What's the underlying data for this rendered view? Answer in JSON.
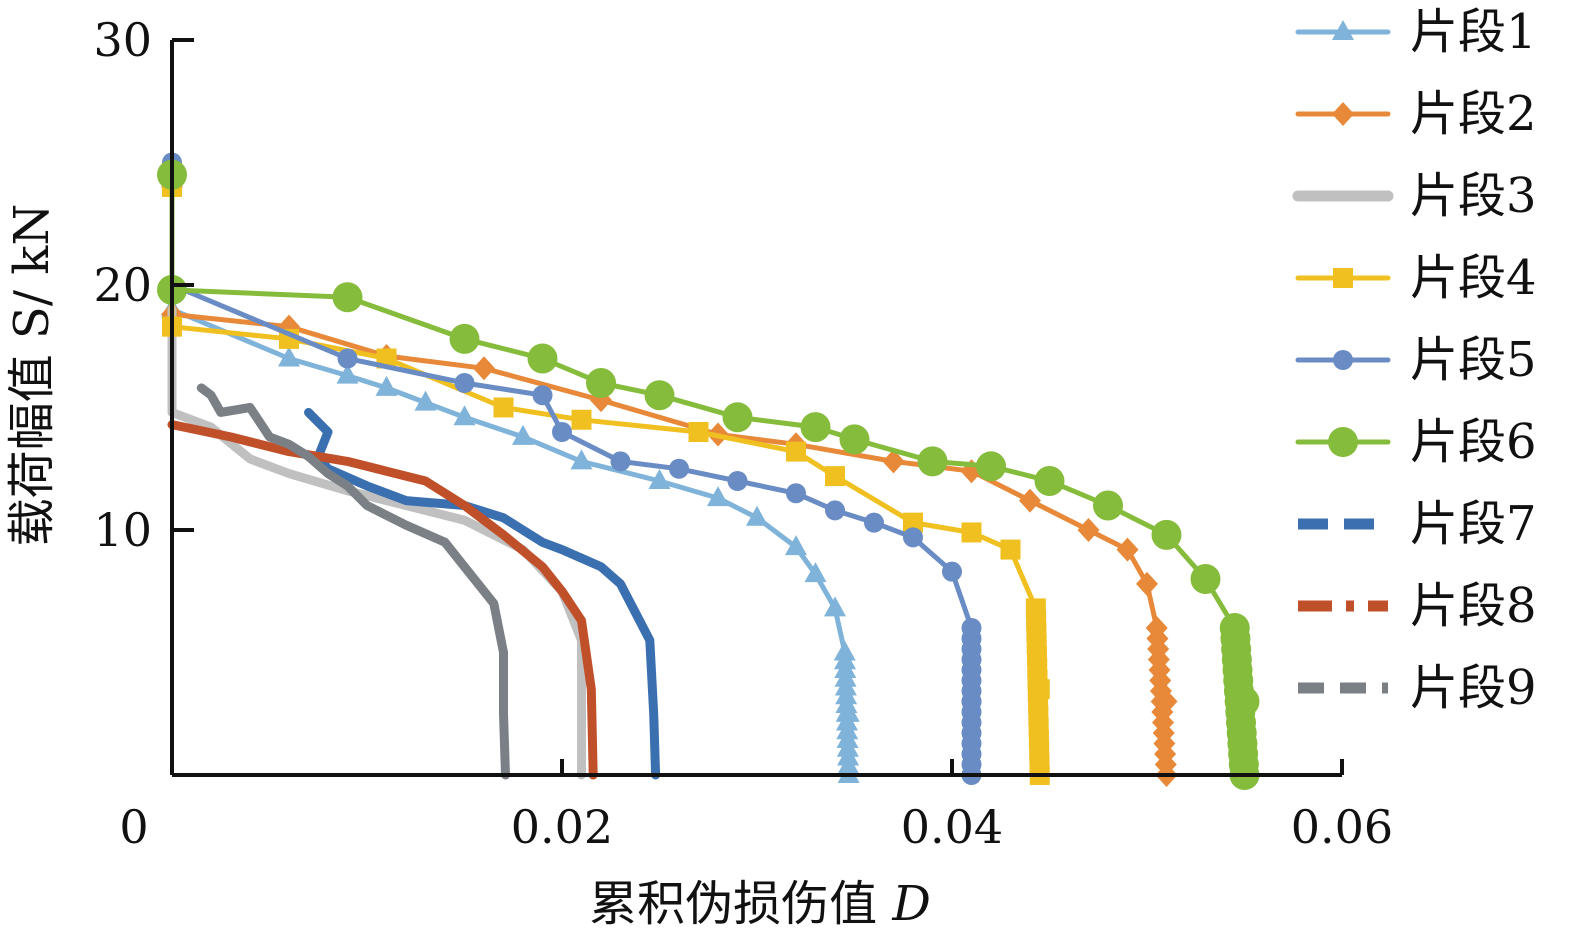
{
  "chart_data": {
    "type": "line",
    "title": "",
    "xlabel_prefix": "累积伪损伤值",
    "xlabel_var": "D",
    "ylabel": "载荷幅值 S/ kN",
    "xlim": [
      0,
      0.06
    ],
    "ylim": [
      0,
      30
    ],
    "x_ticks": [
      0,
      0.02,
      0.04,
      0.06
    ],
    "x_tick_labels": [
      "0",
      "0.02",
      "0.04",
      "0.06"
    ],
    "y_ticks": [
      10,
      20,
      30
    ],
    "y_tick_labels": [
      "10",
      "20",
      "30"
    ],
    "grid": false,
    "legend_position": "right",
    "series": [
      {
        "name": "片段1",
        "color": "#7fb3d9",
        "marker": "triangle",
        "dash": "solid",
        "x": [
          0.0,
          0.0,
          0.006,
          0.009,
          0.011,
          0.013,
          0.015,
          0.018,
          0.021,
          0.025,
          0.028,
          0.03,
          0.032,
          0.033,
          0.034,
          0.0345,
          0.0347,
          0.0347
        ],
        "y": [
          24.5,
          19.0,
          17.0,
          16.3,
          15.8,
          15.2,
          14.6,
          13.8,
          12.8,
          12.0,
          11.3,
          10.5,
          9.3,
          8.2,
          6.8,
          5.0,
          2.5,
          0.0
        ]
      },
      {
        "name": "片段2",
        "color": "#e8893a",
        "marker": "diamond",
        "dash": "solid",
        "x": [
          0.0,
          0.0,
          0.006,
          0.011,
          0.016,
          0.022,
          0.028,
          0.032,
          0.037,
          0.041,
          0.044,
          0.047,
          0.049,
          0.05,
          0.0505,
          0.051,
          0.051
        ],
        "y": [
          24.0,
          18.8,
          18.3,
          17.1,
          16.6,
          15.3,
          13.9,
          13.5,
          12.8,
          12.4,
          11.2,
          10.0,
          9.2,
          7.8,
          6.0,
          3.0,
          0.0
        ]
      },
      {
        "name": "片段3",
        "color": "#c0c0c0",
        "marker": "none",
        "dash": "solid",
        "x": [
          0.0,
          0.0,
          0.002,
          0.004,
          0.006,
          0.009,
          0.012,
          0.015,
          0.018,
          0.02,
          0.021,
          0.021,
          0.021
        ],
        "y": [
          19.0,
          14.8,
          14.2,
          12.9,
          12.3,
          11.6,
          11.0,
          10.4,
          9.2,
          7.5,
          5.5,
          3.0,
          0.0
        ]
      },
      {
        "name": "片段4",
        "color": "#f0c020",
        "marker": "square",
        "dash": "solid",
        "x": [
          0.0,
          0.0,
          0.006,
          0.011,
          0.017,
          0.021,
          0.027,
          0.032,
          0.034,
          0.038,
          0.041,
          0.043,
          0.0443,
          0.0445,
          0.0445
        ],
        "y": [
          24.0,
          18.3,
          17.8,
          17.0,
          15.0,
          14.5,
          14.0,
          13.2,
          12.2,
          10.3,
          9.9,
          9.2,
          6.8,
          3.5,
          0.0
        ]
      },
      {
        "name": "片段5",
        "color": "#6a8cc4",
        "marker": "circle",
        "dash": "solid",
        "x": [
          0.0,
          0.0,
          0.009,
          0.015,
          0.019,
          0.02,
          0.023,
          0.026,
          0.029,
          0.032,
          0.034,
          0.036,
          0.038,
          0.04,
          0.041,
          0.041,
          0.041
        ],
        "y": [
          25.0,
          20.0,
          17.0,
          16.0,
          15.5,
          14.0,
          12.8,
          12.5,
          12.0,
          11.5,
          10.8,
          10.3,
          9.7,
          8.3,
          6.0,
          3.0,
          0.0
        ]
      },
      {
        "name": "片段6",
        "color": "#86bc3c",
        "marker": "circle-large",
        "dash": "solid",
        "x": [
          0.0,
          0.0,
          0.009,
          0.015,
          0.019,
          0.022,
          0.025,
          0.029,
          0.033,
          0.035,
          0.039,
          0.042,
          0.045,
          0.048,
          0.051,
          0.053,
          0.0545,
          0.055,
          0.055
        ],
        "y": [
          24.5,
          19.8,
          19.5,
          17.8,
          17.0,
          16.0,
          15.5,
          14.6,
          14.2,
          13.7,
          12.8,
          12.6,
          12.0,
          11.0,
          9.8,
          8.0,
          6.0,
          3.0,
          0.0
        ]
      },
      {
        "name": "片段7",
        "color": "#3a6fb0",
        "marker": "none",
        "dash": "long",
        "x": [
          0.007,
          0.008,
          0.0075,
          0.008,
          0.01,
          0.012,
          0.015,
          0.017,
          0.019,
          0.02,
          0.022,
          0.023,
          0.0245,
          0.0247,
          0.0248
        ],
        "y": [
          14.8,
          14.0,
          13.0,
          12.5,
          11.8,
          11.2,
          11.0,
          10.5,
          9.5,
          9.2,
          8.5,
          7.8,
          5.5,
          2.5,
          0.0
        ]
      },
      {
        "name": "片段8",
        "color": "#c0502a",
        "marker": "none",
        "dash": "dashdot",
        "x": [
          0.0,
          0.003,
          0.006,
          0.009,
          0.011,
          0.013,
          0.015,
          0.017,
          0.019,
          0.02,
          0.021,
          0.0215,
          0.0216
        ],
        "y": [
          14.3,
          13.8,
          13.2,
          12.8,
          12.4,
          12.0,
          11.0,
          9.8,
          8.5,
          7.5,
          6.3,
          3.5,
          0.0
        ]
      },
      {
        "name": "片段9",
        "color": "#7a8086",
        "marker": "none",
        "dash": "dashed",
        "x": [
          0.0015,
          0.002,
          0.0025,
          0.004,
          0.005,
          0.006,
          0.007,
          0.008,
          0.009,
          0.01,
          0.012,
          0.014,
          0.015,
          0.0165,
          0.017,
          0.017,
          0.0171
        ],
        "y": [
          15.8,
          15.5,
          14.8,
          15.0,
          13.8,
          13.5,
          13.0,
          12.3,
          11.8,
          11.0,
          10.2,
          9.5,
          8.5,
          7.0,
          5.0,
          2.5,
          0.0
        ]
      }
    ]
  }
}
